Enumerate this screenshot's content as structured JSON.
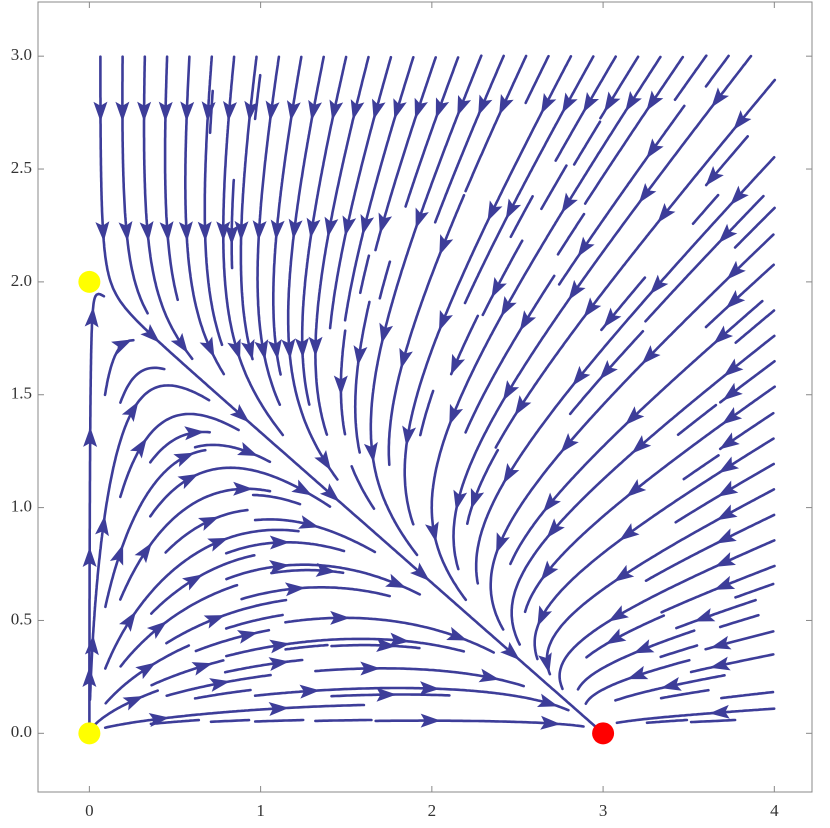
{
  "chart_data": {
    "type": "stream",
    "xlim": [
      -0.3,
      4.22
    ],
    "ylim": [
      -0.26,
      3.24
    ],
    "xticks": [
      0,
      1,
      2,
      3,
      4
    ],
    "yticks": [
      {
        "value": 0,
        "label": "0.0"
      },
      {
        "value": 0.5,
        "label": "0.5"
      },
      {
        "value": 1,
        "label": "1.0"
      },
      {
        "value": 1.5,
        "label": "1.5"
      },
      {
        "value": 2,
        "label": "2.0"
      },
      {
        "value": 2.5,
        "label": "2.5"
      },
      {
        "value": 3,
        "label": "3.0"
      }
    ],
    "stream_color": "#3d3d99",
    "points": [
      {
        "x": 0,
        "y": 0,
        "color": "#ffff00"
      },
      {
        "x": 0,
        "y": 2,
        "color": "#ffff00"
      },
      {
        "x": 3,
        "y": 0,
        "color": "#ff0000"
      }
    ]
  }
}
